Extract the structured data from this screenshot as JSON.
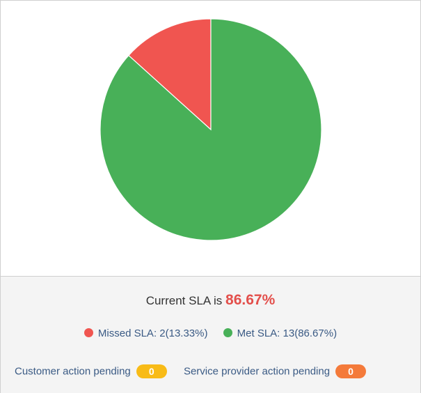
{
  "chart_data": {
    "type": "pie",
    "series": [
      {
        "name": "Missed SLA",
        "value": 2,
        "percent": 13.33,
        "color": "#f05550"
      },
      {
        "name": "Met SLA",
        "value": 13,
        "percent": 86.67,
        "color": "#48b058"
      }
    ]
  },
  "sla": {
    "label": "Current SLA is",
    "value": "86.67%",
    "value_color": "#e34f4b"
  },
  "legend": [
    {
      "text": "Missed SLA: 2(13.33%)",
      "color": "#f05550"
    },
    {
      "text": "Met SLA: 13(86.67%)",
      "color": "#48b058"
    }
  ],
  "pending": [
    {
      "label": "Customer action pending",
      "count": "0",
      "color": "#f8bb17"
    },
    {
      "label": "Service provider action pending",
      "count": "0",
      "color": "#f47a3a"
    }
  ]
}
